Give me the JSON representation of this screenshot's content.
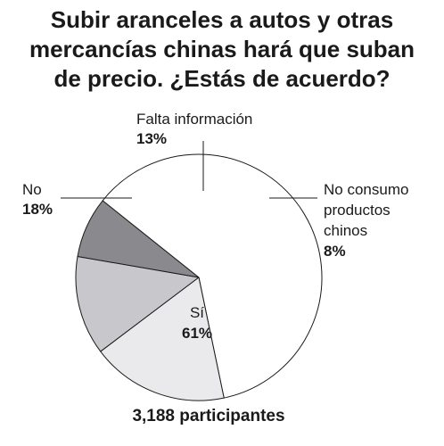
{
  "chart_data": {
    "type": "pie",
    "title_lines": [
      "Subir aranceles a autos y otras",
      "mercancías chinas hará que suban",
      "de precio. ¿Estás de acuerdo?"
    ],
    "slices": [
      {
        "label_lines": [
          "Falta información"
        ],
        "value": 13,
        "value_label": "13%",
        "color": "#c8c8cc"
      },
      {
        "label_lines": [
          "No consumo",
          "productos",
          "chinos"
        ],
        "value": 8,
        "value_label": "8%",
        "color": "#8a8a8e"
      },
      {
        "label_lines": [
          "Sí"
        ],
        "value": 61,
        "value_label": "61%",
        "color": "#ffffff"
      },
      {
        "label_lines": [
          "No"
        ],
        "value": 18,
        "value_label": "18%",
        "color": "#eaeaec"
      }
    ],
    "footer": "3,188 participantes",
    "stroke_color": "#1a1a1a"
  }
}
